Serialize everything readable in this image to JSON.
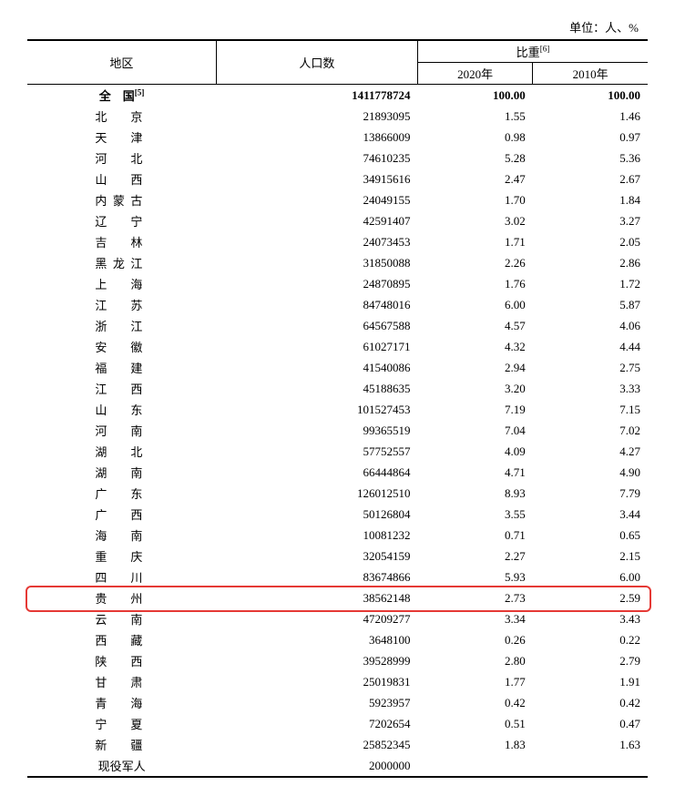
{
  "unit_label": "单位：人、%",
  "headers": {
    "region": "地区",
    "population": "人口数",
    "proportion": "比重",
    "proportion_sup": "[6]",
    "year2020": "2020年",
    "year2010": "2010年"
  },
  "total_row": {
    "region": "全　国",
    "region_sup": "[5]",
    "population": "1411778724",
    "p2020": "100.00",
    "p2010": "100.00"
  },
  "rows": [
    {
      "region": "北　京",
      "population": "21893095",
      "p2020": "1.55",
      "p2010": "1.46"
    },
    {
      "region": "天　津",
      "population": "13866009",
      "p2020": "0.98",
      "p2010": "0.97"
    },
    {
      "region": "河　北",
      "population": "74610235",
      "p2020": "5.28",
      "p2010": "5.36"
    },
    {
      "region": "山　西",
      "population": "34915616",
      "p2020": "2.47",
      "p2010": "2.67"
    },
    {
      "region": "内蒙古",
      "population": "24049155",
      "p2020": "1.70",
      "p2010": "1.84"
    },
    {
      "region": "辽　宁",
      "population": "42591407",
      "p2020": "3.02",
      "p2010": "3.27"
    },
    {
      "region": "吉　林",
      "population": "24073453",
      "p2020": "1.71",
      "p2010": "2.05"
    },
    {
      "region": "黑龙江",
      "population": "31850088",
      "p2020": "2.26",
      "p2010": "2.86"
    },
    {
      "region": "上　海",
      "population": "24870895",
      "p2020": "1.76",
      "p2010": "1.72"
    },
    {
      "region": "江　苏",
      "population": "84748016",
      "p2020": "6.00",
      "p2010": "5.87"
    },
    {
      "region": "浙　江",
      "population": "64567588",
      "p2020": "4.57",
      "p2010": "4.06"
    },
    {
      "region": "安　徽",
      "population": "61027171",
      "p2020": "4.32",
      "p2010": "4.44"
    },
    {
      "region": "福　建",
      "population": "41540086",
      "p2020": "2.94",
      "p2010": "2.75"
    },
    {
      "region": "江　西",
      "population": "45188635",
      "p2020": "3.20",
      "p2010": "3.33"
    },
    {
      "region": "山　东",
      "population": "101527453",
      "p2020": "7.19",
      "p2010": "7.15"
    },
    {
      "region": "河　南",
      "population": "99365519",
      "p2020": "7.04",
      "p2010": "7.02"
    },
    {
      "region": "湖　北",
      "population": "57752557",
      "p2020": "4.09",
      "p2010": "4.27"
    },
    {
      "region": "湖　南",
      "population": "66444864",
      "p2020": "4.71",
      "p2010": "4.90"
    },
    {
      "region": "广　东",
      "population": "126012510",
      "p2020": "8.93",
      "p2010": "7.79"
    },
    {
      "region": "广　西",
      "population": "50126804",
      "p2020": "3.55",
      "p2010": "3.44"
    },
    {
      "region": "海　南",
      "population": "10081232",
      "p2020": "0.71",
      "p2010": "0.65"
    },
    {
      "region": "重　庆",
      "population": "32054159",
      "p2020": "2.27",
      "p2010": "2.15"
    },
    {
      "region": "四　川",
      "population": "83674866",
      "p2020": "5.93",
      "p2010": "6.00"
    },
    {
      "region": "贵　州",
      "population": "38562148",
      "p2020": "2.73",
      "p2010": "2.59",
      "highlight": true
    },
    {
      "region": "云　南",
      "population": "47209277",
      "p2020": "3.34",
      "p2010": "3.43"
    },
    {
      "region": "西　藏",
      "population": "3648100",
      "p2020": "0.26",
      "p2010": "0.22"
    },
    {
      "region": "陕　西",
      "population": "39528999",
      "p2020": "2.80",
      "p2010": "2.79"
    },
    {
      "region": "甘　肃",
      "population": "25019831",
      "p2020": "1.77",
      "p2010": "1.91"
    },
    {
      "region": "青　海",
      "population": "5923957",
      "p2020": "0.42",
      "p2010": "0.42"
    },
    {
      "region": "宁　夏",
      "population": "7202654",
      "p2020": "0.51",
      "p2010": "0.47"
    },
    {
      "region": "新　疆",
      "population": "25852345",
      "p2020": "1.83",
      "p2010": "1.63"
    },
    {
      "region": "现役军人",
      "population": "2000000",
      "p2020": "",
      "p2010": ""
    }
  ],
  "highlight_color": "#e53935"
}
